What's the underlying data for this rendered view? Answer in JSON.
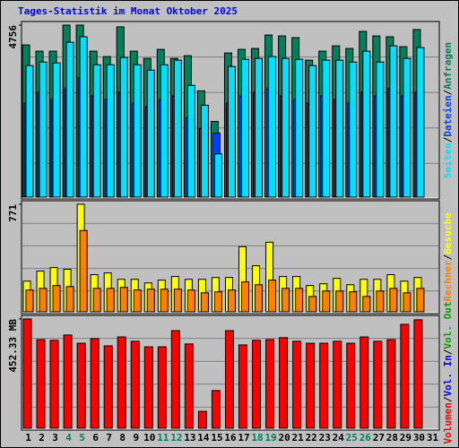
{
  "legend_separator": "/",
  "chart_data": [
    {
      "type": "bar",
      "title": "Tages-Statistik im Monat Oktober 2025",
      "ylim": [
        0,
        4756
      ],
      "yticks": [
        4756
      ],
      "series": [
        {
          "name": "Anfragen",
          "color": "#00805c",
          "values": [
            4208,
            4035,
            4035,
            4756,
            4756,
            4035,
            3885,
            4706,
            4035,
            3835,
            4084,
            3835,
            3910,
            2938,
            2092,
            3985,
            4084,
            4109,
            4482,
            4457,
            4408,
            3786,
            4035,
            4183,
            4109,
            4582,
            4457,
            4433,
            4159,
            4632,
            0
          ]
        },
        {
          "name": "Dateien",
          "color": "#0040ff",
          "values": [
            2600,
            2900,
            2700,
            3000,
            3300,
            2800,
            2700,
            2900,
            2600,
            2500,
            2700,
            2800,
            2200,
            1900,
            1768,
            2600,
            2800,
            2900,
            3000,
            2800,
            2700,
            2600,
            2800,
            2700,
            2600,
            2900,
            2800,
            3000,
            2800,
            2900,
            0
          ]
        },
        {
          "name": "Seiten",
          "color": "#00e0ff",
          "values": [
            3636,
            3735,
            3710,
            4283,
            4433,
            3660,
            3660,
            3860,
            3660,
            3511,
            3660,
            3786,
            3088,
            2540,
            1195,
            3611,
            3810,
            3835,
            3885,
            3835,
            3810,
            3636,
            3786,
            3786,
            3735,
            4035,
            3735,
            4183,
            3835,
            4134,
            0
          ]
        }
      ]
    },
    {
      "type": "bar",
      "ylim": [
        0,
        771
      ],
      "yticks": [
        771
      ],
      "series": [
        {
          "name": "Besuche",
          "color": "#ffff00",
          "values": [
            220,
            292,
            317,
            305,
            771,
            266,
            279,
            233,
            233,
            207,
            227,
            253,
            233,
            233,
            246,
            246,
            467,
            330,
            499,
            253,
            253,
            188,
            201,
            240,
            194,
            233,
            233,
            266,
            220,
            246,
            0
          ]
        },
        {
          "name": "Rechner",
          "color": "#ff8000",
          "values": [
            156,
            168,
            188,
            181,
            583,
            168,
            168,
            175,
            156,
            162,
            162,
            162,
            156,
            136,
            143,
            156,
            214,
            194,
            227,
            168,
            168,
            110,
            149,
            149,
            143,
            110,
            149,
            168,
            136,
            168,
            0
          ]
        }
      ]
    },
    {
      "type": "bar",
      "ylim": [
        0,
        452.33
      ],
      "yticks": [
        {
          "value": 452.33,
          "label": "452.33 MB"
        }
      ],
      "categories": [
        "1",
        "2",
        "3",
        "4",
        "5",
        "6",
        "7",
        "8",
        "9",
        "10",
        "11",
        "12",
        "13",
        "14",
        "15",
        "16",
        "17",
        "18",
        "19",
        "20",
        "21",
        "22",
        "23",
        "24",
        "25",
        "26",
        "27",
        "28",
        "29",
        "30",
        "31"
      ],
      "category_colors": [
        "#000000",
        "#000000",
        "#000000",
        "#00805c",
        "#00805c",
        "#000000",
        "#000000",
        "#000000",
        "#000000",
        "#000000",
        "#00805c",
        "#00805c",
        "#000000",
        "#000000",
        "#000000",
        "#000000",
        "#000000",
        "#00805c",
        "#00805c",
        "#000000",
        "#000000",
        "#000000",
        "#000000",
        "#000000",
        "#00805c",
        "#00805c",
        "#000000",
        "#000000",
        "#000000",
        "#000000",
        "#000000"
      ],
      "series": [
        {
          "name": "Vol. Out",
          "color": "#00a000",
          "values": [
            null,
            null,
            null,
            null,
            null,
            null,
            null,
            null,
            null,
            null,
            null,
            null,
            null,
            null,
            null,
            null,
            null,
            null,
            null,
            null,
            null,
            null,
            null,
            null,
            null,
            null,
            null,
            null,
            null,
            null,
            null
          ]
        },
        {
          "name": "Vol. In",
          "color": "#0000ff",
          "values": [
            null,
            null,
            null,
            null,
            null,
            null,
            null,
            null,
            null,
            null,
            null,
            null,
            null,
            null,
            null,
            null,
            null,
            null,
            null,
            null,
            null,
            null,
            null,
            null,
            null,
            null,
            null,
            null,
            null,
            null,
            null
          ]
        },
        {
          "name": "Volumen",
          "color": "#ff0000",
          "values": [
            452.33,
            367,
            364,
            386,
            352,
            371,
            341,
            378,
            360,
            337,
            337,
            404,
            349,
            70,
            156,
            404,
            345,
            364,
            367,
            375,
            360,
            352,
            352,
            360,
            352,
            378,
            360,
            367,
            430,
            449,
            0
          ]
        }
      ]
    }
  ]
}
